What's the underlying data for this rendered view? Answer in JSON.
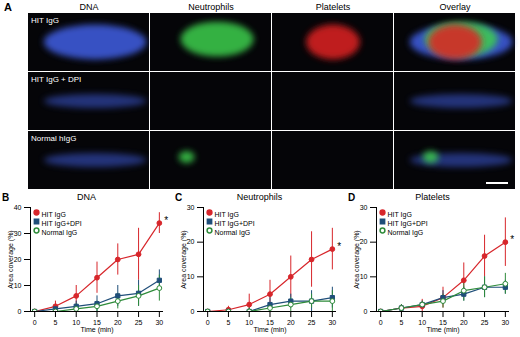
{
  "panel_a": {
    "label": "A",
    "columns": [
      "DNA",
      "Neutrophils",
      "Platelets",
      "Overlay"
    ],
    "rows": [
      "HIT IgG",
      "HIT IgG + DPI",
      "Normal hIgG"
    ]
  },
  "chart_data": [
    {
      "panel_label": "B",
      "type": "line",
      "title": "DNA",
      "x_label": "Time (min)",
      "y_label": "Area coverage (%)",
      "x": [
        0,
        5,
        10,
        15,
        20,
        25,
        30
      ],
      "xlim": [
        -1,
        31
      ],
      "xticks": [
        0,
        5,
        10,
        15,
        20,
        25,
        30
      ],
      "ylim": [
        0,
        40
      ],
      "yticks": [
        0,
        10,
        20,
        30,
        40
      ],
      "legend": "top-left",
      "series": [
        {
          "name": "HIT IgG",
          "color": "#d7262b",
          "marker": "circle",
          "values": [
            0,
            2,
            6,
            13,
            20,
            22,
            34
          ],
          "errors": [
            0.5,
            2,
            4,
            6,
            6,
            10,
            4
          ]
        },
        {
          "name": "HIT IgG+DPI",
          "color": "#1f4e79",
          "marker": "square",
          "values": [
            0,
            1,
            2,
            3,
            6,
            7,
            12
          ],
          "errors": [
            0.5,
            1,
            2,
            3,
            4,
            5,
            4
          ]
        },
        {
          "name": "Normal IgG",
          "color": "#2e8b3a",
          "marker": "open-circle",
          "values": [
            0,
            0,
            1,
            2,
            4,
            6,
            9
          ],
          "errors": [
            0.5,
            1,
            2,
            2,
            3,
            4,
            5
          ]
        }
      ],
      "annotations": [
        {
          "text": "*",
          "x": 30,
          "y": 34
        }
      ]
    },
    {
      "panel_label": "C",
      "type": "line",
      "title": "Neutrophils",
      "x_label": "Time (min)",
      "y_label": "Area coverage (%)",
      "x": [
        0,
        5,
        10,
        15,
        20,
        25,
        30
      ],
      "xlim": [
        -1,
        31
      ],
      "xticks": [
        0,
        5,
        10,
        15,
        20,
        25,
        30
      ],
      "ylim": [
        0,
        30
      ],
      "yticks": [
        0,
        10,
        20,
        30
      ],
      "legend": "top-left",
      "series": [
        {
          "name": "HIT IgG",
          "color": "#d7262b",
          "marker": "circle",
          "values": [
            0,
            0.5,
            2,
            5,
            10,
            15,
            18
          ],
          "errors": [
            0.5,
            1,
            3,
            4,
            6,
            8,
            6
          ]
        },
        {
          "name": "HIT IgG+DPI",
          "color": "#1f4e79",
          "marker": "square",
          "values": [
            0,
            0,
            0,
            2,
            3,
            3,
            4
          ],
          "errors": [
            0.3,
            0.5,
            1,
            2,
            2,
            3,
            3
          ]
        },
        {
          "name": "Normal IgG",
          "color": "#2e8b3a",
          "marker": "open-circle",
          "values": [
            0,
            0,
            0,
            1,
            2,
            3,
            3
          ],
          "errors": [
            0.3,
            0.5,
            1,
            1,
            2,
            2,
            3
          ]
        }
      ],
      "annotations": [
        {
          "text": "*",
          "x": 30,
          "y": 18
        }
      ]
    },
    {
      "panel_label": "D",
      "type": "line",
      "title": "Platelets",
      "x_label": "Time (min)",
      "y_label": "Area coverage (%)",
      "x": [
        0,
        5,
        10,
        15,
        20,
        25,
        30
      ],
      "xlim": [
        -1,
        31
      ],
      "xticks": [
        0,
        5,
        10,
        15,
        20,
        25,
        30
      ],
      "ylim": [
        0,
        30
      ],
      "yticks": [
        0,
        10,
        20,
        30
      ],
      "legend": "top-left",
      "series": [
        {
          "name": "HIT IgG",
          "color": "#d7262b",
          "marker": "circle",
          "values": [
            0,
            1,
            1.5,
            4,
            9,
            16,
            20
          ],
          "errors": [
            0.5,
            1,
            2,
            3,
            5,
            6,
            7
          ]
        },
        {
          "name": "HIT IgG+DPI",
          "color": "#1f4e79",
          "marker": "square",
          "values": [
            0,
            1,
            2,
            4,
            5,
            7,
            7
          ],
          "errors": [
            0.5,
            1,
            1,
            2,
            2,
            3,
            2
          ]
        },
        {
          "name": "Normal IgG",
          "color": "#2e8b3a",
          "marker": "open-circle",
          "values": [
            0,
            1,
            2,
            3,
            6,
            7,
            8
          ],
          "errors": [
            0.5,
            1,
            1,
            2,
            3,
            3,
            3
          ]
        }
      ],
      "annotations": [
        {
          "text": "*",
          "x": 30,
          "y": 20
        }
      ]
    }
  ]
}
